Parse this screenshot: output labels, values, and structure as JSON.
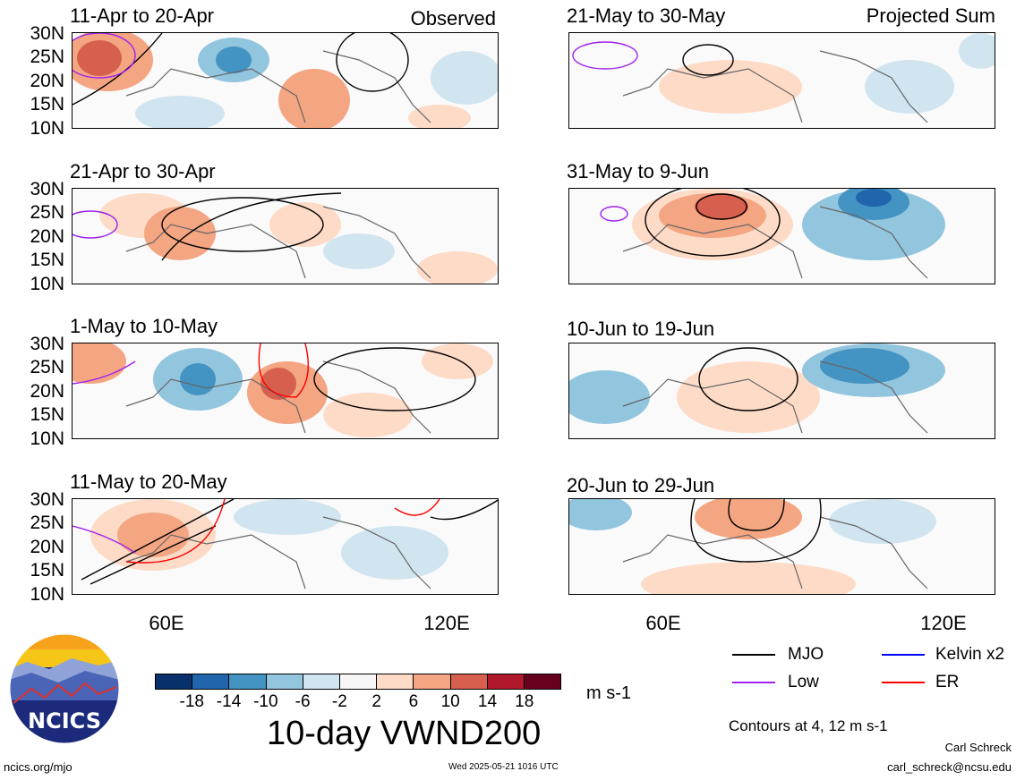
{
  "panels": [
    {
      "title": "11-Apr to 20-Apr",
      "label": "Observed"
    },
    {
      "title": "21-May to 30-May",
      "label": "Projected Sum"
    },
    {
      "title": "21-Apr to 30-Apr",
      "label": ""
    },
    {
      "title": "31-May to 9-Jun",
      "label": ""
    },
    {
      "title": "1-May to 10-May",
      "label": ""
    },
    {
      "title": "10-Jun to 19-Jun",
      "label": ""
    },
    {
      "title": "11-May to 20-May",
      "label": ""
    },
    {
      "title": "20-Jun to 29-Jun",
      "label": ""
    }
  ],
  "lat_labels": [
    "30N",
    "25N",
    "20N",
    "15N",
    "10N"
  ],
  "lon_labels": [
    "60E",
    "120E"
  ],
  "colorbar": {
    "ticks": [
      "-18",
      "-14",
      "-10",
      "-6",
      "-2",
      "2",
      "6",
      "10",
      "14",
      "18"
    ],
    "colors": [
      "#08306b",
      "#2166ac",
      "#4393c3",
      "#92c5de",
      "#d1e5f0",
      "#f7f7f7",
      "#fddbc7",
      "#f4a582",
      "#d6604d",
      "#b2182b",
      "#67001f"
    ],
    "units": "m s-1"
  },
  "legend": {
    "items": [
      {
        "label": "MJO",
        "color": "#000000"
      },
      {
        "label": "Kelvin x2",
        "color": "#0000ff"
      },
      {
        "label": "Low",
        "color": "#a020f0"
      },
      {
        "label": "ER",
        "color": "#ff0000"
      }
    ],
    "contours_note": "Contours at 4, 12 m s-1"
  },
  "main_title": "10-day VWND200",
  "logo_text": "NCICS",
  "footer": {
    "url": "ncics.org/mjo",
    "timestamp": "Wed 2025-05-21 1016 UTC",
    "author": "Carl Schreck",
    "email": "carl_schreck@ncsu.edu"
  }
}
